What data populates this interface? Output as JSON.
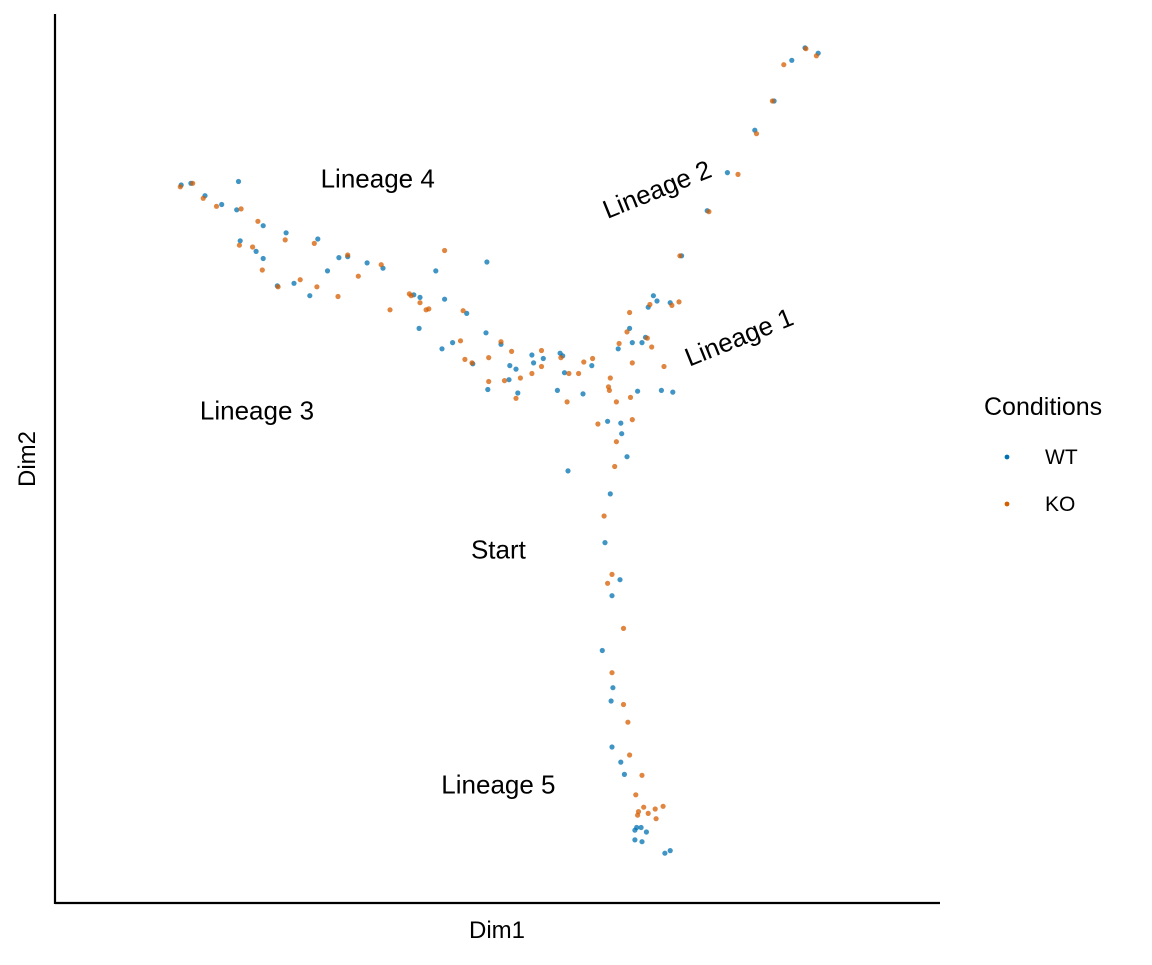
{
  "chart_data": {
    "type": "scatter",
    "xlabel": "Dim1",
    "ylabel": "Dim2",
    "xlim": [
      0,
      100
    ],
    "ylim": [
      0,
      100
    ],
    "x_ticks_shown": false,
    "y_ticks_shown": false,
    "grid": false,
    "legend": {
      "title": "Conditions",
      "position": "right",
      "entries": [
        {
          "label": "WT",
          "color": "#0072B2"
        },
        {
          "label": "KO",
          "color": "#D55E00"
        }
      ]
    },
    "series": [
      {
        "name": "WT",
        "color": "#0072B2",
        "x": [
          14.1,
          15.2,
          16.8,
          18.7,
          20.4,
          23.4,
          26.0,
          29.6,
          33.0,
          37.0,
          41.2,
          46.5,
          50.4,
          54.1,
          57.6,
          60.7,
          63.7,
          65.0,
          66.4,
          65.3,
          67.1,
          70.9,
          73.8,
          76.1,
          79.2,
          81.4,
          83.4,
          84.9,
          86.4,
          69.6,
          67.7,
          65.9,
          68.6,
          69.9,
          64.0,
          62.8,
          62.2,
          63.9,
          63.0,
          61.9,
          63.1,
          62.9,
          63.0,
          64.0,
          64.4,
          65.6,
          65.8,
          66.3,
          66.4,
          65.6,
          66.9,
          69.0,
          69.6,
          20.8,
          22.6,
          23.4,
          25.0,
          26.9,
          28.7,
          30.7,
          32.0,
          35.2,
          40.5,
          44.9,
          47.2,
          51.3,
          53.9,
          55.2,
          57.1,
          59.7,
          62.5,
          64.1,
          66.8,
          48.9,
          52.1,
          20.6,
          43.0,
          51.4,
          56.8,
          52.3,
          64.7,
          57.4,
          58.0,
          44.0,
          41.1,
          68.1,
          48.8,
          48.7,
          43.7
        ],
        "y": [
          80.9,
          81.1,
          79.7,
          78.7,
          78.1,
          76.3,
          75.5,
          74.8,
          72.8,
          71.5,
          68.2,
          66.4,
          62.9,
          60.8,
          59.7,
          60.5,
          62.4,
          64.7,
          63.1,
          63.1,
          67.1,
          72.9,
          78.0,
          82.3,
          87.1,
          90.4,
          95.0,
          96.4,
          95.8,
          67.6,
          68.4,
          57.6,
          57.7,
          57.5,
          54.0,
          46.0,
          40.5,
          36.3,
          34.5,
          28.3,
          24.1,
          22.6,
          17.4,
          15.7,
          14.3,
          8.0,
          8.3,
          8.3,
          6.7,
          6.9,
          7.8,
          5.4,
          5.7,
          74.6,
          73.4,
          72.6,
          69.5,
          69.8,
          68.4,
          71.2,
          72.7,
          72.1,
          68.5,
          63.1,
          60.7,
          58.9,
          61.7,
          61.3,
          61.9,
          57.3,
          54.2,
          52.8,
          63.7,
          57.8,
          60.1,
          81.3,
          71.2,
          60.5,
          57.7,
          57.4,
          50.2,
          61.6,
          48.6,
          68.0,
          64.7,
          67.8,
          72.2,
          64.2,
          62.4
        ]
      },
      {
        "name": "KO",
        "color": "#D55E00",
        "x": [
          14.0,
          15.4,
          16.6,
          18.1,
          20.9,
          22.8,
          25.9,
          29.2,
          33.0,
          36.8,
          41.2,
          46.1,
          50.4,
          55.0,
          58.1,
          60.8,
          63.8,
          64.7,
          67.0,
          67.5,
          67.3,
          70.7,
          74.0,
          77.3,
          79.4,
          81.2,
          82.5,
          85.0,
          86.2,
          65.3,
          65.0,
          69.8,
          65.1,
          62.7,
          63.5,
          63.3,
          62.1,
          63.0,
          62.5,
          64.3,
          63.0,
          64.3,
          64.8,
          65.0,
          66.4,
          66.0,
          65.9,
          65.7,
          66.6,
          67.1,
          68.0,
          67.9,
          68.8,
          20.7,
          22.2,
          23.3,
          25.1,
          27.6,
          29.5,
          31.9,
          34.2,
          37.8,
          40.2,
          45.8,
          49.0,
          52.6,
          53.9,
          55.0,
          57.9,
          59.8,
          62.8,
          63.5,
          49.0,
          52.1,
          41.9,
          62.6,
          47.1,
          57.2,
          50.8,
          68.9,
          70.6,
          65.3,
          61.4,
          51.6,
          44.0,
          46.3,
          59.2,
          42.2,
          40.0
        ],
        "y": [
          80.7,
          81.1,
          79.4,
          78.5,
          78.2,
          76.8,
          74.7,
          74.3,
          73.0,
          71.9,
          67.6,
          66.7,
          63.2,
          60.4,
          59.6,
          61.3,
          63.0,
          64.3,
          63.6,
          62.6,
          67.4,
          72.9,
          77.9,
          82.1,
          86.7,
          90.4,
          94.5,
          96.3,
          95.5,
          60.8,
          66.5,
          67.3,
          56.9,
          57.7,
          56.4,
          49.1,
          43.5,
          36.9,
          35.9,
          30.8,
          25.8,
          22.2,
          20.2,
          16.5,
          14.2,
          10.1,
          9.7,
          12.0,
          10.6,
          9.9,
          9.3,
          10.4,
          10.7,
          74.1,
          73.9,
          71.3,
          69.4,
          70.2,
          69.4,
          68.3,
          70.6,
          66.8,
          68.4,
          63.3,
          61.4,
          59.1,
          59.6,
          62.2,
          56.4,
          60.9,
          59.1,
          51.9,
          58.7,
          56.8,
          66.8,
          58.1,
          60.8,
          61.4,
          58.8,
          60.4,
          67.7,
          54.4,
          53.9,
          62.1,
          73.5,
          61.2,
          59.6,
          66.9,
          68.6
        ]
      }
    ],
    "annotations": [
      {
        "text": "Lineage 4",
        "x": 36.4,
        "y": 81.4,
        "angle": 0
      },
      {
        "text": "Lineage 2",
        "x": 68.2,
        "y": 80.2,
        "angle": -22
      },
      {
        "text": "Lineage 1",
        "x": 77.5,
        "y": 63.5,
        "angle": -22
      },
      {
        "text": "Lineage 3",
        "x": 22.7,
        "y": 55.2,
        "angle": 0
      },
      {
        "text": "Start",
        "x": 50.1,
        "y": 39.5,
        "angle": 0
      },
      {
        "text": "Lineage 5",
        "x": 50.1,
        "y": 12.9,
        "angle": 0
      }
    ]
  }
}
